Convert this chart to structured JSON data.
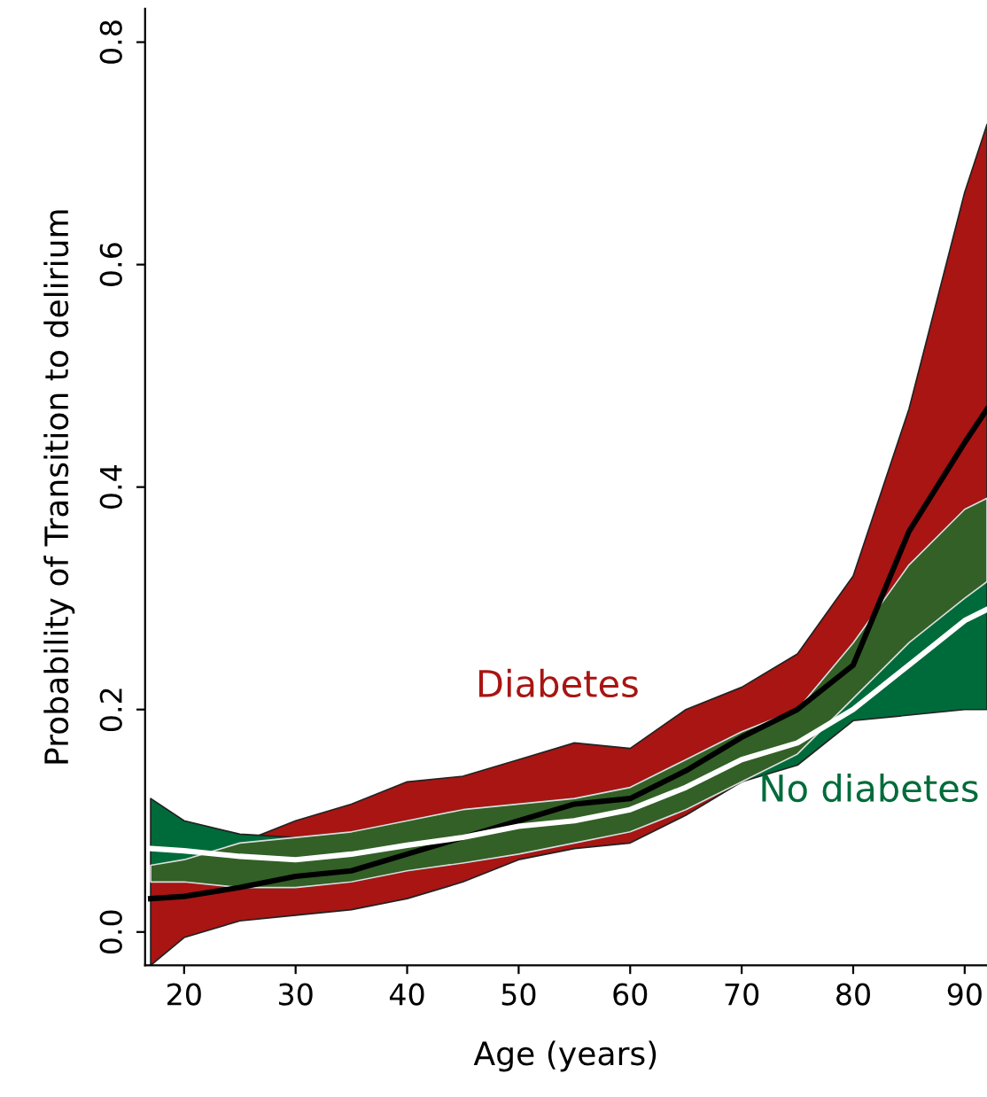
{
  "chart_data": {
    "type": "line",
    "xlabel": "Age (years)",
    "ylabel": "Probability of Transition to delirium",
    "x": [
      17,
      20,
      25,
      30,
      35,
      40,
      45,
      50,
      55,
      60,
      65,
      70,
      75,
      80,
      85,
      90,
      92
    ],
    "series": [
      {
        "name": "Diabetes",
        "color": "#000000",
        "values": [
          0.03,
          0.032,
          0.04,
          0.05,
          0.055,
          0.07,
          0.085,
          0.1,
          0.115,
          0.12,
          0.145,
          0.175,
          0.2,
          0.24,
          0.36,
          0.44,
          0.47
        ],
        "lower": [
          -0.03,
          -0.005,
          0.01,
          0.015,
          0.02,
          0.03,
          0.045,
          0.065,
          0.075,
          0.08,
          0.105,
          0.135,
          0.16,
          0.21,
          0.26,
          0.3,
          0.315
        ],
        "upper": [
          0.06,
          0.065,
          0.08,
          0.1,
          0.115,
          0.135,
          0.14,
          0.155,
          0.17,
          0.165,
          0.2,
          0.22,
          0.25,
          0.32,
          0.47,
          0.665,
          0.726
        ]
      },
      {
        "name": "No diabetes",
        "color": "#ffffff",
        "values": [
          0.075,
          0.073,
          0.068,
          0.065,
          0.07,
          0.078,
          0.085,
          0.095,
          0.1,
          0.11,
          0.13,
          0.155,
          0.17,
          0.2,
          0.24,
          0.28,
          0.29
        ],
        "lower": [
          0.045,
          0.045,
          0.04,
          0.04,
          0.045,
          0.055,
          0.062,
          0.07,
          0.08,
          0.09,
          0.11,
          0.135,
          0.15,
          0.19,
          0.195,
          0.2,
          0.2
        ],
        "upper": [
          0.12,
          0.1,
          0.088,
          0.085,
          0.09,
          0.1,
          0.11,
          0.115,
          0.12,
          0.13,
          0.155,
          0.18,
          0.2,
          0.26,
          0.33,
          0.38,
          0.39
        ]
      }
    ],
    "colors": [
      "#a81513",
      "#006b3a"
    ],
    "xlim": [
      16.5,
      92
    ],
    "xticks": [
      20,
      30,
      40,
      50,
      60,
      70,
      80,
      90
    ],
    "ylim": [
      -0.03,
      0.83
    ],
    "yticks": [
      {
        "value": 0,
        "label": "0.0"
      },
      {
        "value": 0.2,
        "label": "0.2"
      },
      {
        "value": 0.4,
        "label": "0.4"
      },
      {
        "value": 0.6,
        "label": "0.6"
      },
      {
        "value": 0.8,
        "label": "0.8"
      }
    ],
    "grid": false,
    "legend": false
  }
}
